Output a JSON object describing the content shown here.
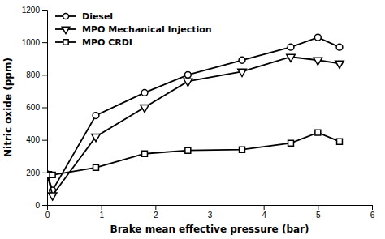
{
  "chart_data": {
    "type": "line",
    "xlabel": "Brake mean effective pressure (bar)",
    "ylabel": "Nitric oxide (ppm)",
    "x": [
      0.0,
      0.1,
      0.9,
      1.8,
      2.6,
      3.6,
      4.5,
      5.0,
      5.4
    ],
    "series": [
      {
        "name": "Diesel",
        "color": "#000000",
        "marker": "circle",
        "values": [
          190,
          90,
          550,
          690,
          800,
          890,
          970,
          1030,
          970
        ]
      },
      {
        "name": "MPO Mechanical Injection",
        "color": "#000000",
        "marker": "triangle-down",
        "values": [
          190,
          60,
          420,
          600,
          760,
          820,
          910,
          890,
          870
        ]
      },
      {
        "name": "MPO CRDI",
        "color": "#000000",
        "marker": "square",
        "values": [
          185,
          185,
          230,
          315,
          335,
          340,
          380,
          445,
          390
        ]
      }
    ],
    "xlim": [
      0,
      6
    ],
    "ylim": [
      0,
      1200
    ],
    "xticks": [
      0,
      1,
      2,
      3,
      4,
      5,
      6
    ],
    "yticks": [
      0,
      200,
      400,
      600,
      800,
      1000,
      1200
    ],
    "grid": false,
    "legend": "upper left"
  }
}
